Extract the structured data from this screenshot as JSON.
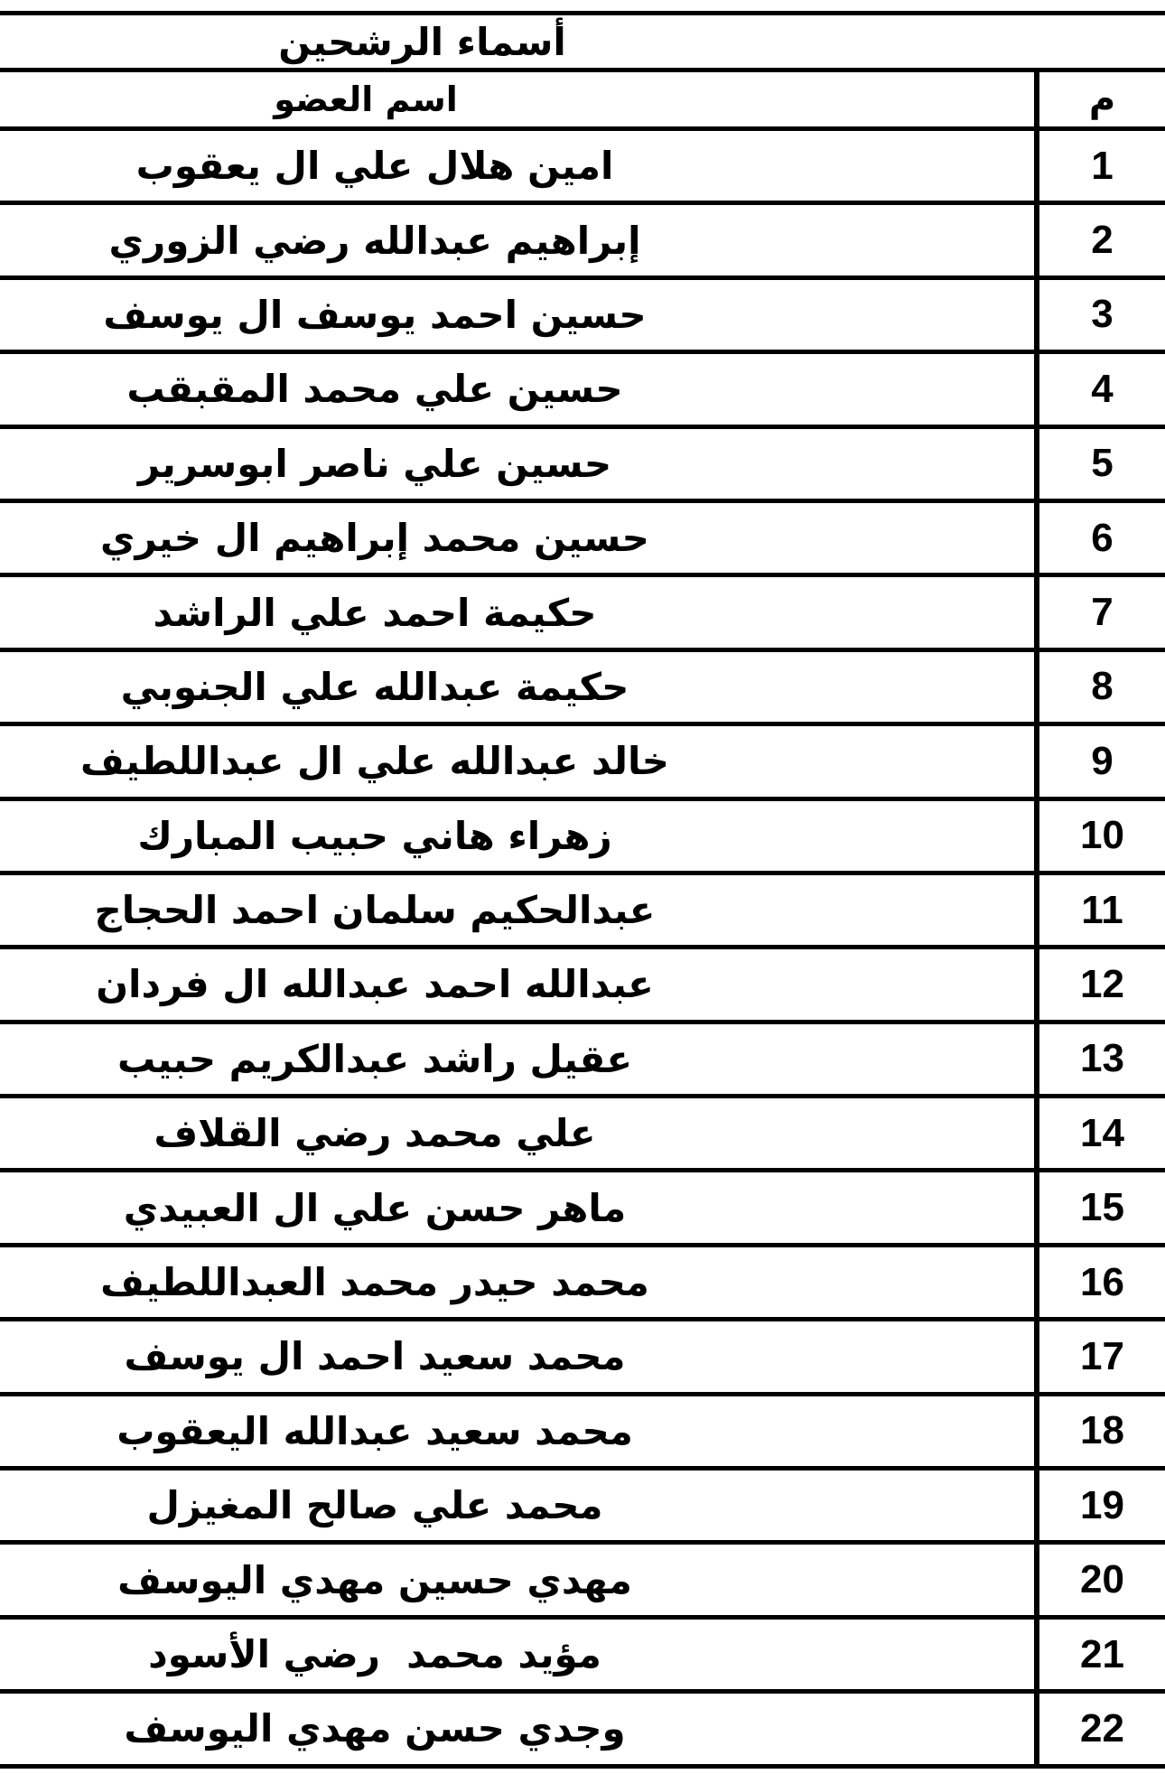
{
  "title": "أسماء الرشحين",
  "columns": {
    "member_name": "اسم العضو",
    "number": "م"
  },
  "rows": [
    {
      "num": "1",
      "name": "امين هلال علي ال يعقوب"
    },
    {
      "num": "2",
      "name": "إبراهيم عبدالله رضي الزوري"
    },
    {
      "num": "3",
      "name": "حسين احمد يوسف ال يوسف"
    },
    {
      "num": "4",
      "name": "حسين علي محمد المقبقب"
    },
    {
      "num": "5",
      "name": "حسين علي ناصر ابوسرير"
    },
    {
      "num": "6",
      "name": "حسين محمد إبراهيم ال خيري"
    },
    {
      "num": "7",
      "name": "حكيمة احمد علي الراشد"
    },
    {
      "num": "8",
      "name": "حكيمة عبدالله علي الجنوبي"
    },
    {
      "num": "9",
      "name": "خالد عبدالله علي ال عبداللطيف"
    },
    {
      "num": "10",
      "name": "زهراء هاني حبيب المبارك"
    },
    {
      "num": "11",
      "name": "عبدالحكيم سلمان احمد الحجاج"
    },
    {
      "num": "12",
      "name": "عبدالله احمد عبدالله ال فردان"
    },
    {
      "num": "13",
      "name": "عقيل راشد عبدالكريم حبيب"
    },
    {
      "num": "14",
      "name": "علي محمد رضي القلاف"
    },
    {
      "num": "15",
      "name": "ماهر حسن علي ال العبيدي"
    },
    {
      "num": "16",
      "name": "محمد حيدر محمد العبداللطيف"
    },
    {
      "num": "17",
      "name": "محمد سعيد احمد ال يوسف"
    },
    {
      "num": "18",
      "name": "محمد سعيد عبدالله اليعقوب"
    },
    {
      "num": "19",
      "name": "محمد علي صالح المغيزل"
    },
    {
      "num": "20",
      "name": "مهدي حسين مهدي اليوسف"
    },
    {
      "num": "21",
      "name": "مؤيد محمد  رضي الأسود"
    },
    {
      "num": "22",
      "name": "وجدي حسن مهدي اليوسف"
    }
  ],
  "colors": {
    "border": "#000000",
    "text": "#000000",
    "background": "#ffffff"
  }
}
